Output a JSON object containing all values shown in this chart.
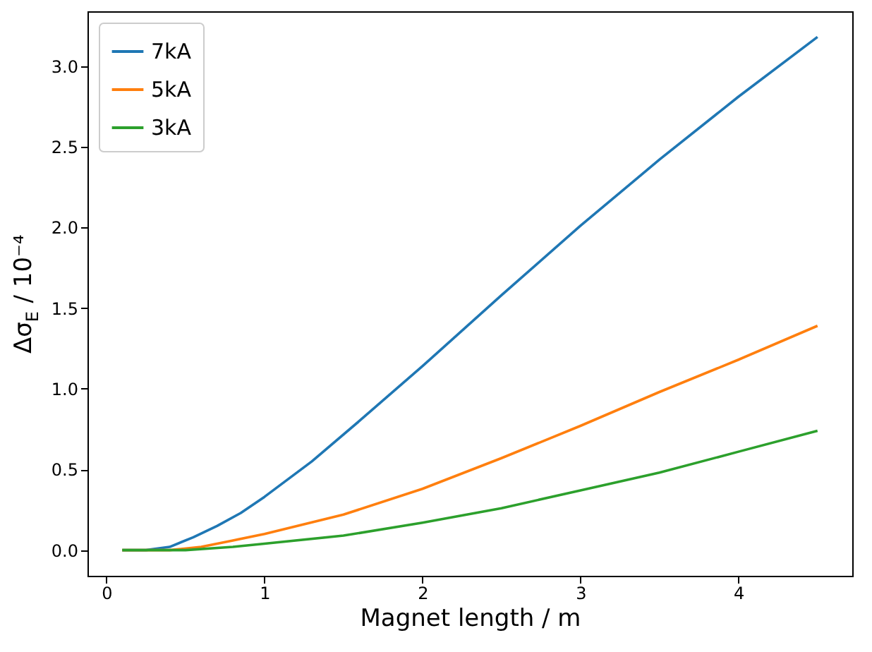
{
  "chart_data": {
    "type": "line",
    "xlabel": "Magnet length / m",
    "ylabel": "Δσ$_{E}$ / 10⁻⁴",
    "xlim": [
      -0.12,
      4.72
    ],
    "ylim": [
      -0.159,
      3.339
    ],
    "xticks": [
      0,
      1,
      2,
      3,
      4
    ],
    "yticks": [
      {
        "value": 0,
        "label": "0.0"
      },
      {
        "value": 0.5,
        "label": "0.5"
      },
      {
        "value": 1,
        "label": "1.0"
      },
      {
        "value": 1.5,
        "label": "1.5"
      },
      {
        "value": 2,
        "label": "2.0"
      },
      {
        "value": 2.5,
        "label": "2.5"
      },
      {
        "value": 3,
        "label": "3.0"
      }
    ],
    "grid": false,
    "legend": "top left",
    "marker": "none",
    "line_style": "solid",
    "series": [
      {
        "name": "7kA",
        "color": "#1f77b4",
        "x": [
          0.1,
          0.25,
          0.4,
          0.55,
          0.7,
          0.85,
          1.0,
          1.3,
          1.6,
          2.0,
          2.5,
          3.0,
          3.5,
          4.0,
          4.5
        ],
        "values": [
          0,
          0,
          0.02,
          0.08,
          0.15,
          0.23,
          0.33,
          0.55,
          0.8,
          1.14,
          1.58,
          2.01,
          2.42,
          2.81,
          3.18
        ]
      },
      {
        "name": "5kA",
        "color": "#ff7f0e",
        "x": [
          0.1,
          0.4,
          0.6,
          0.8,
          1.0,
          1.5,
          2.0,
          2.5,
          3.0,
          3.5,
          4.0,
          4.5
        ],
        "values": [
          0,
          0,
          0.02,
          0.06,
          0.1,
          0.22,
          0.38,
          0.57,
          0.77,
          0.98,
          1.18,
          1.39
        ]
      },
      {
        "name": "3kA",
        "color": "#2ca02c",
        "x": [
          0.1,
          0.5,
          0.8,
          1.0,
          1.5,
          2.0,
          2.5,
          3.0,
          3.5,
          4.0,
          4.5
        ],
        "values": [
          0,
          0,
          0.02,
          0.04,
          0.09,
          0.17,
          0.26,
          0.37,
          0.48,
          0.61,
          0.74
        ]
      }
    ]
  }
}
